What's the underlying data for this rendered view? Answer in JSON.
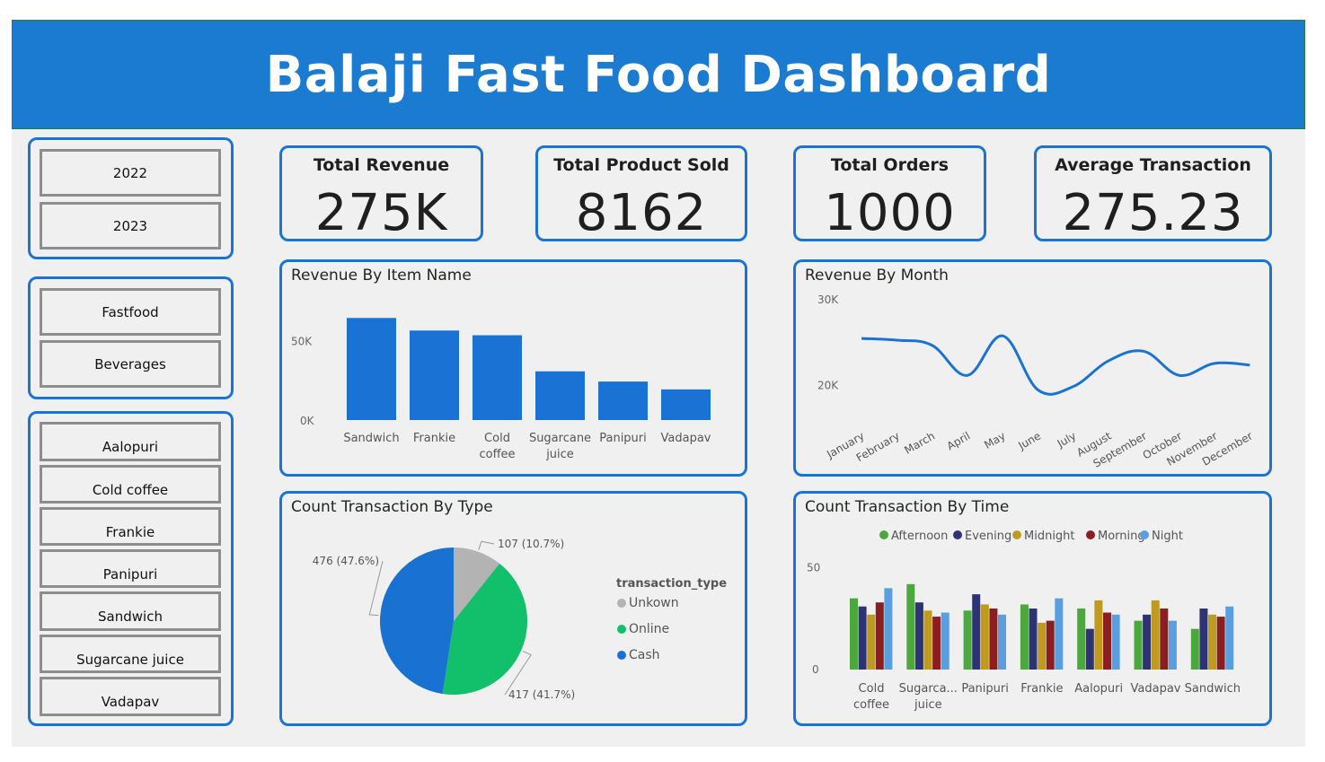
{
  "header": {
    "title": "Balaji Fast Food Dashboard"
  },
  "slicers": {
    "years": [
      "2022",
      "2023"
    ],
    "item_types": [
      "Fastfood",
      "Beverages"
    ],
    "items": [
      "Aalopuri",
      "Cold coffee",
      "Frankie",
      "Panipuri",
      "Sandwich",
      "Sugarcane juice",
      "Vadapav"
    ]
  },
  "kpis": [
    {
      "label": "Total Revenue",
      "value": "275K"
    },
    {
      "label": "Total Product Sold",
      "value": "8162"
    },
    {
      "label": "Total Orders",
      "value": "1000"
    },
    {
      "label": "Average Transaction",
      "value": "275.23"
    }
  ],
  "colors": {
    "accent": "#1a7bd0",
    "panel_border": "#1a74d8",
    "bar": "#1a73d4",
    "unknown": "#b3b3b3",
    "online": "#12bf6a",
    "cash": "#1971d2",
    "afternoon": "#4aa83c",
    "evening": "#2e3374",
    "midnight": "#c09a1f",
    "morning": "#8b1f1f",
    "night": "#5b9ee0"
  },
  "chart_data": [
    {
      "type": "bar",
      "title": "Revenue By Item Name",
      "categories": [
        "Sandwich",
        "Frankie",
        "Cold coffee",
        "Sugarcane juice",
        "Panipuri",
        "Vadapav"
      ],
      "values": [
        65000,
        57000,
        54000,
        31000,
        24500,
        19500
      ],
      "yticks": [
        "0K",
        "50K"
      ],
      "ylim": [
        0,
        80000
      ],
      "grid": false
    },
    {
      "type": "line",
      "title": "Revenue By Month",
      "x": [
        "January",
        "February",
        "March",
        "April",
        "May",
        "June",
        "July",
        "August",
        "September",
        "October",
        "November",
        "December"
      ],
      "values": [
        25500,
        25300,
        24700,
        21200,
        25800,
        19500,
        19900,
        22900,
        24000,
        21200,
        22600,
        22400
      ],
      "yticks": [
        "20K",
        "30K"
      ],
      "ylim": [
        16000,
        30000
      ],
      "grid": false
    },
    {
      "type": "pie",
      "title": "Count Transaction By Type",
      "legend_title": "transaction_type",
      "slices": [
        {
          "label": "Unkown",
          "value": 107,
          "text": "107 (10.7%)"
        },
        {
          "label": "Online",
          "value": 417,
          "text": "417 (41.7%)"
        },
        {
          "label": "Cash",
          "value": 476,
          "text": "476 (47.6%)"
        }
      ],
      "legend_position": "right"
    },
    {
      "type": "bar",
      "title": "Count Transaction By Time",
      "categories": [
        "Cold coffee",
        "Sugarca... juice",
        "Panipuri",
        "Frankie",
        "Aalopuri",
        "Vadapav",
        "Sandwich"
      ],
      "series": [
        {
          "name": "Afternoon",
          "values": [
            35,
            42,
            29,
            32,
            30,
            24,
            20
          ]
        },
        {
          "name": "Evening",
          "values": [
            31,
            33,
            37,
            30,
            20,
            27,
            30
          ]
        },
        {
          "name": "Midnight",
          "values": [
            27,
            29,
            32,
            23,
            34,
            34,
            27
          ]
        },
        {
          "name": "Morning",
          "values": [
            33,
            26,
            30,
            24,
            28,
            30,
            26
          ]
        },
        {
          "name": "Night",
          "values": [
            40,
            28,
            27,
            35,
            27,
            24,
            31
          ]
        }
      ],
      "yticks": [
        "0",
        "50"
      ],
      "ylim": [
        0,
        60
      ],
      "legend_position": "top",
      "grid": false
    }
  ]
}
